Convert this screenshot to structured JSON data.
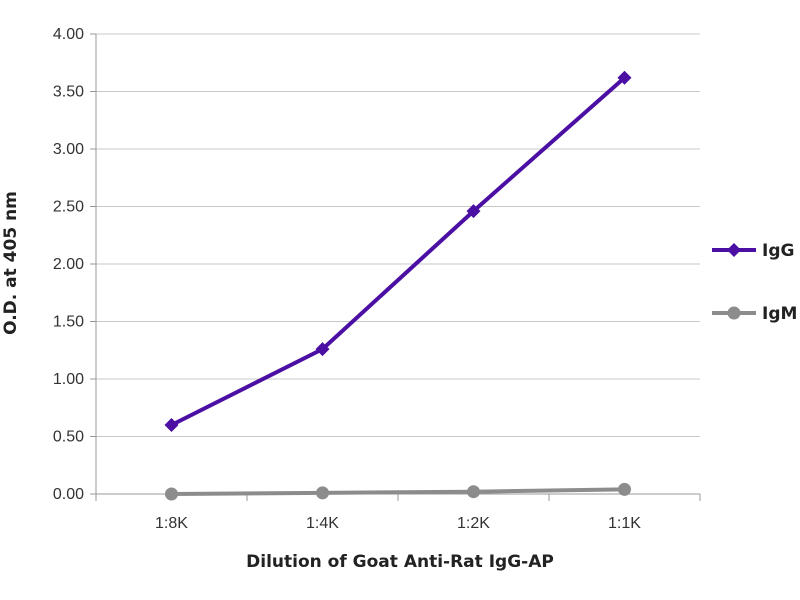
{
  "chart_data": {
    "type": "line",
    "categories": [
      "1:8K",
      "1:4K",
      "1:2K",
      "1:1K"
    ],
    "series": [
      {
        "name": "IgG",
        "values": [
          0.6,
          1.26,
          2.46,
          3.62
        ],
        "color": "#4b0fa3",
        "marker": "diamond"
      },
      {
        "name": "IgM",
        "values": [
          0.0,
          0.01,
          0.02,
          0.04
        ],
        "color": "#8c8c8c",
        "marker": "circle"
      }
    ],
    "xlabel": "Dilution of Goat Anti-Rat IgG-AP",
    "ylabel": "O.D. at 405 nm",
    "ylim": [
      0,
      4
    ],
    "yticks": [
      "0.00",
      "0.50",
      "1.00",
      "1.50",
      "2.00",
      "2.50",
      "3.00",
      "3.50",
      "4.00"
    ],
    "grid": true,
    "legend_position": "right",
    "gridline_color": "#c8c8c8",
    "axis_color": "#9a9a9a"
  }
}
